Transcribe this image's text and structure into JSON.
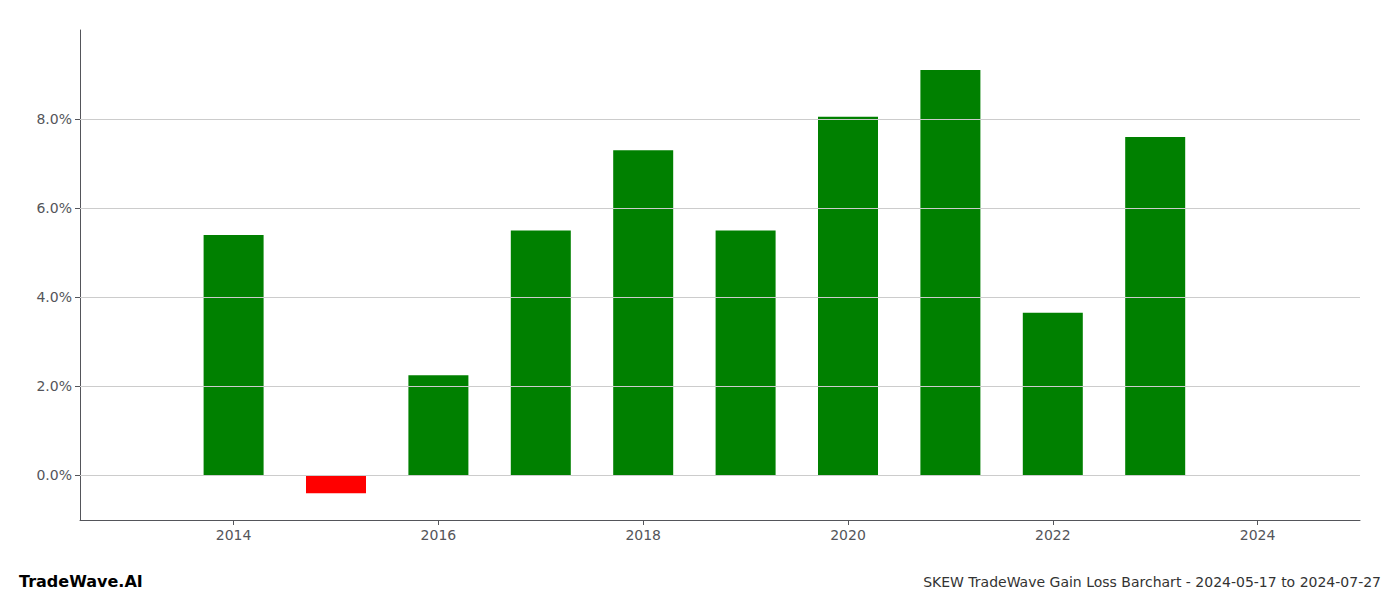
{
  "chart_data": {
    "type": "bar",
    "title": "SKEW TradeWave Gain Loss Barchart - 2024-05-17 to 2024-07-27",
    "annotations": [
      "TradeWave.AI"
    ],
    "x": [
      2014,
      2015,
      2016,
      2017,
      2018,
      2019,
      2020,
      2021,
      2022,
      2023
    ],
    "values": [
      0.054,
      -0.004,
      0.0225,
      0.055,
      0.073,
      0.055,
      0.0805,
      0.091,
      0.0365,
      0.076
    ],
    "colors": [
      "#008000",
      "#ff0000",
      "#008000",
      "#008000",
      "#008000",
      "#008000",
      "#008000",
      "#008000",
      "#008000",
      "#008000"
    ],
    "xlim": [
      2012.5,
      2025.0
    ],
    "xticks": [
      2014,
      2016,
      2018,
      2020,
      2022,
      2024
    ],
    "ylim": [
      -0.01,
      0.1
    ],
    "yticks": [
      {
        "value": 0.0,
        "label": "0.0%"
      },
      {
        "value": 0.02,
        "label": "2.0%"
      },
      {
        "value": 0.04,
        "label": "4.0%"
      },
      {
        "value": 0.06,
        "label": "6.0%"
      },
      {
        "value": 0.08,
        "label": "8.0%"
      }
    ],
    "grid": true
  }
}
